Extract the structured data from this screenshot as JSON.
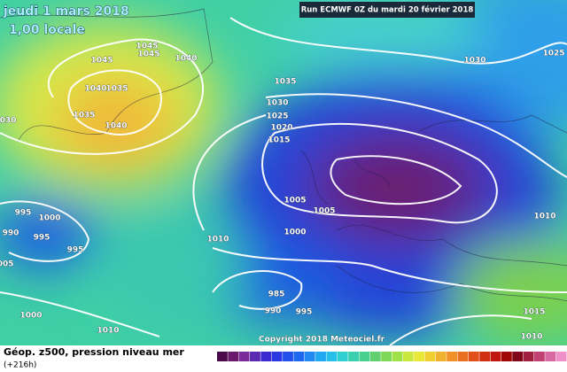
{
  "header": {
    "date": "jeudi 1 mars 2018",
    "time": "1,00 locale",
    "run": "Run ECMWF 0Z du mardi 20 février 2018"
  },
  "copyright": "Copyright 2018 Meteociel.fr",
  "footer": {
    "title": "Géop. z500, pression niveau mer",
    "lead": "(+216h)"
  },
  "isobars": [
    1045,
    1045,
    1040,
    1045,
    1040,
    1035,
    1035,
    1040,
    1030,
    1035,
    1030,
    1025,
    1020,
    1015,
    1005,
    1005,
    1000,
    1010,
    995,
    1000,
    990,
    995,
    995,
    1005,
    985,
    990,
    995,
    1000,
    1010,
    1030,
    1025,
    1010,
    1015,
    1010
  ]
}
